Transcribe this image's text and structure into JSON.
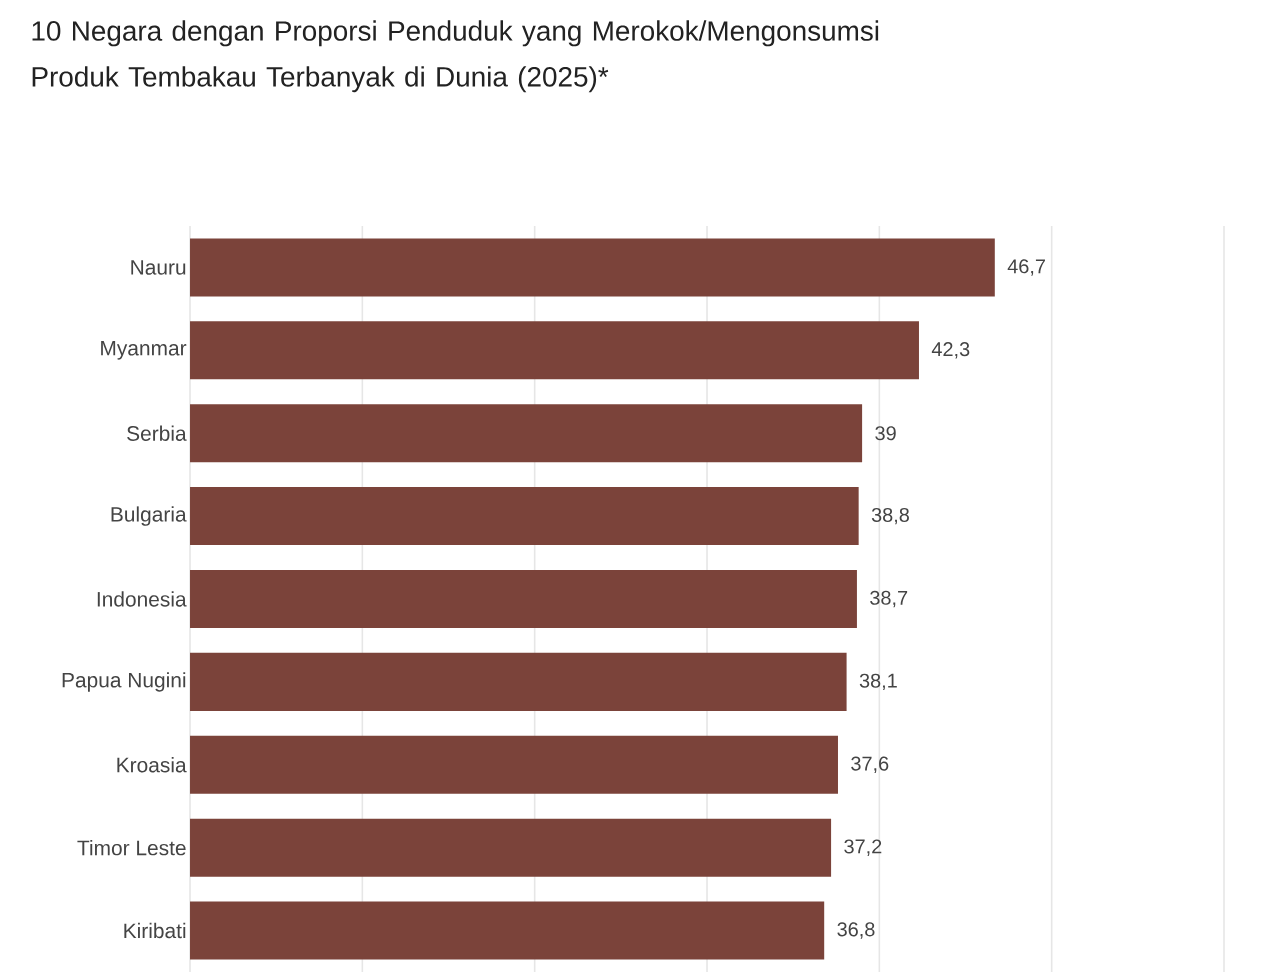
{
  "chart_data": {
    "type": "bar",
    "orientation": "horizontal",
    "title": "10 Negara dengan Proporsi Penduduk yang Merokok/Mengonsumsi Produk Tembakau Terbanyak di Dunia (2025)*",
    "categories": [
      "Nauru",
      "Myanmar",
      "Serbia",
      "Bulgaria",
      "Indonesia",
      "Papua Nugini",
      "Kroasia",
      "Timor Leste",
      "Kiribati"
    ],
    "values": [
      46.7,
      42.3,
      39,
      38.8,
      38.7,
      38.1,
      37.6,
      37.2,
      36.8
    ],
    "value_labels": [
      "46,7",
      "42,3",
      "39",
      "38,8",
      "38,7",
      "38,1",
      "37,6",
      "37,2",
      "36,8"
    ],
    "color": "#7b433a",
    "xlim": [
      0,
      60
    ],
    "xticks": [
      {
        "value": 0,
        "label": null
      },
      {
        "value": 10,
        "label": null
      },
      {
        "value": 20,
        "label": null
      },
      {
        "value": 30,
        "label": null
      },
      {
        "value": 40,
        "label": null
      },
      {
        "value": 50,
        "label": null
      },
      {
        "value": 60,
        "label": null
      }
    ],
    "grid": "x",
    "tick_labels": "y"
  }
}
